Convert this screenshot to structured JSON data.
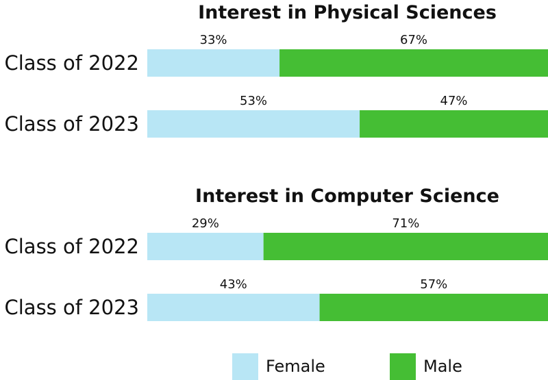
{
  "chart_data": {
    "type": "bar",
    "stacked": true,
    "orientation": "horizontal",
    "normalized": true,
    "unit": "%",
    "panels": [
      {
        "title": "Interest in Physical Sciences",
        "categories": [
          "Class of 2022",
          "Class of 2023"
        ],
        "series": [
          {
            "name": "Female",
            "values": [
              33,
              53
            ],
            "labels": [
              "33%",
              "53%"
            ]
          },
          {
            "name": "Male",
            "values": [
              67,
              47
            ],
            "labels": [
              "67%",
              "47%"
            ]
          }
        ]
      },
      {
        "title": "Interest in Computer Science",
        "categories": [
          "Class of 2022",
          "Class of 2023"
        ],
        "series": [
          {
            "name": "Female",
            "values": [
              29,
              43
            ],
            "labels": [
              "29%",
              "43%"
            ]
          },
          {
            "name": "Male",
            "values": [
              71,
              57
            ],
            "labels": [
              "71%",
              "57%"
            ]
          }
        ]
      }
    ],
    "legend": {
      "position": "bottom",
      "entries": [
        "Female",
        "Male"
      ]
    },
    "colors": {
      "Female": "#b8e6f5",
      "Male": "#45be34"
    },
    "grid": false
  }
}
